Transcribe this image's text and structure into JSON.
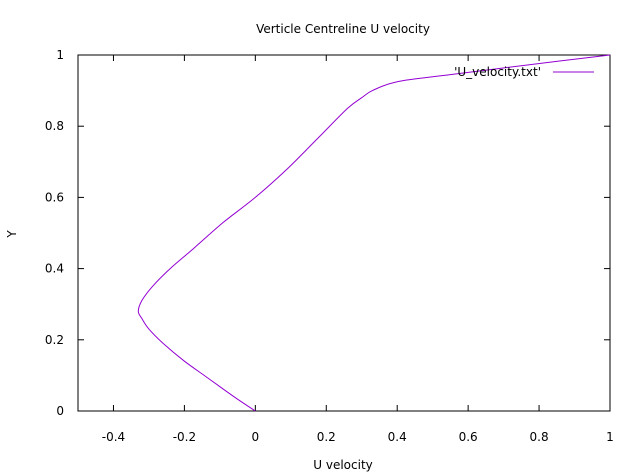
{
  "chart_data": {
    "type": "line",
    "title": "Verticle Centreline U velocity",
    "xlabel": "U velocity",
    "ylabel": "Y",
    "xlim": [
      -0.5,
      1
    ],
    "ylim": [
      0,
      1
    ],
    "xticks": [
      -0.4,
      -0.2,
      0,
      0.2,
      0.4,
      0.6,
      0.8,
      1
    ],
    "xtick_labels": [
      "-0.4",
      "-0.2",
      "0",
      "0.2",
      "0.4",
      "0.6",
      "0.8",
      "1"
    ],
    "yticks": [
      0,
      0.2,
      0.4,
      0.6,
      0.8,
      1
    ],
    "ytick_labels": [
      "0",
      "0.2",
      "0.4",
      "0.6",
      "0.8",
      "1"
    ],
    "grid": false,
    "legend_position": "top-right",
    "series": [
      {
        "name": "'U_velocity.txt'",
        "color": "#9400d3",
        "x": [
          0.0,
          -0.06,
          -0.13,
          -0.2,
          -0.26,
          -0.3,
          -0.32,
          -0.33,
          -0.32,
          -0.29,
          -0.24,
          -0.17,
          -0.09,
          0.0,
          0.09,
          0.18,
          0.26,
          0.3,
          0.33,
          0.4,
          0.55,
          0.75,
          1.0
        ],
        "y": [
          0.0,
          0.04,
          0.09,
          0.14,
          0.19,
          0.23,
          0.26,
          0.28,
          0.31,
          0.35,
          0.4,
          0.46,
          0.53,
          0.6,
          0.68,
          0.77,
          0.85,
          0.88,
          0.9,
          0.925,
          0.945,
          0.97,
          1.0
        ]
      }
    ]
  }
}
